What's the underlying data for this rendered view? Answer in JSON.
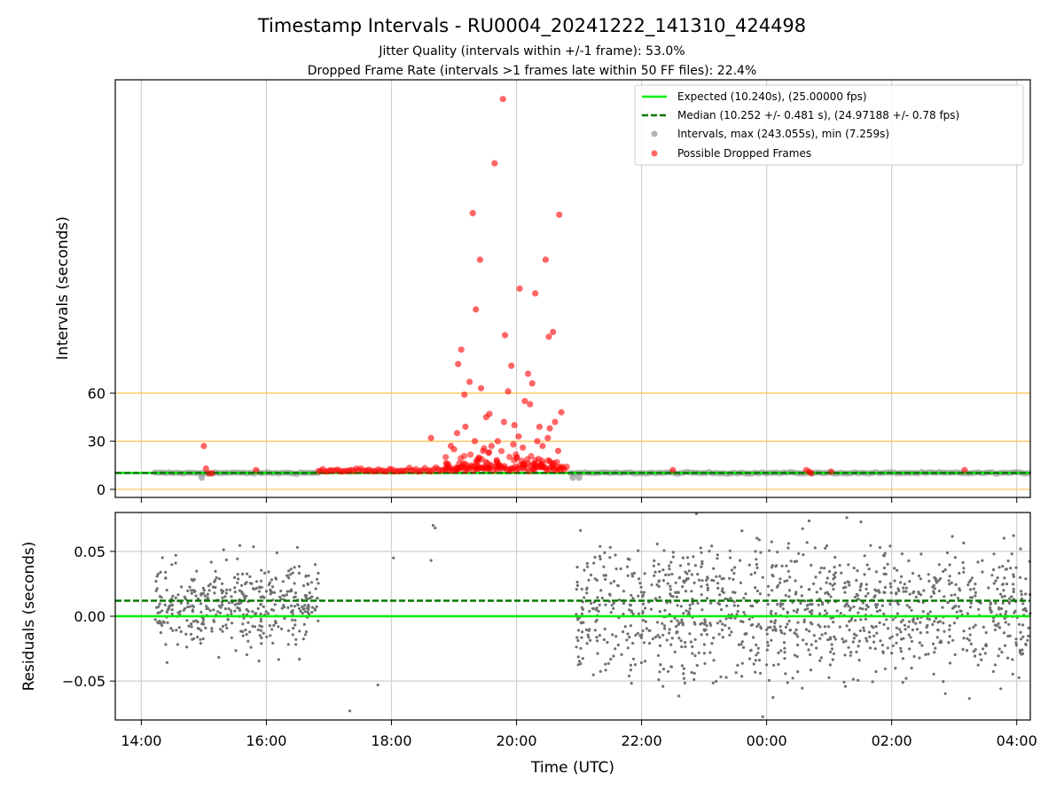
{
  "figure": {
    "title": "Timestamp Intervals - RU0004_20241222_141310_424498",
    "subtitle_1": "Jitter Quality (intervals within +/-1 frame): 53.0%",
    "subtitle_2": "Dropped Frame Rate (intervals >1 frames late within 50 FF files): 22.4%"
  },
  "chart_data": [
    {
      "type": "scatter",
      "panel": "intervals",
      "ylabel": "Intervals (seconds)",
      "ylim": [
        -5,
        255
      ],
      "yticks": [
        0,
        30,
        60
      ],
      "reference_lines": [
        0,
        30,
        60
      ],
      "grid": "vertical",
      "legend_position": "top-right",
      "legend": [
        "Expected (10.240s), (25.00000 fps)",
        "Median (10.252 +/- 0.481 s), (24.97188 +/- 0.78 fps)",
        "Intervals, max (243.055s), min (7.259s)",
        "Possible Dropped Frames"
      ],
      "expected_interval": 10.24,
      "median_interval": 10.252,
      "gray_segments": [
        [
          "14:13",
          "16:50"
        ],
        [
          "20:52",
          "04:13"
        ]
      ],
      "dropped_points": [
        {
          "time": "19:47",
          "value": 243
        },
        {
          "time": "19:39",
          "value": 203
        },
        {
          "time": "19:18",
          "value": 172
        },
        {
          "time": "20:41",
          "value": 171
        },
        {
          "time": "19:25",
          "value": 143
        },
        {
          "time": "20:28",
          "value": 143
        },
        {
          "time": "20:03",
          "value": 125
        },
        {
          "time": "20:18",
          "value": 122
        },
        {
          "time": "19:21",
          "value": 112
        },
        {
          "time": "20:35",
          "value": 98
        },
        {
          "time": "20:31",
          "value": 95
        },
        {
          "time": "19:49",
          "value": 96
        },
        {
          "time": "19:07",
          "value": 87
        },
        {
          "time": "19:04",
          "value": 78
        },
        {
          "time": "19:55",
          "value": 77
        },
        {
          "time": "20:11",
          "value": 72
        },
        {
          "time": "19:15",
          "value": 67
        },
        {
          "time": "20:15",
          "value": 66
        },
        {
          "time": "19:26",
          "value": 63
        },
        {
          "time": "19:10",
          "value": 59
        },
        {
          "time": "19:52",
          "value": 61
        },
        {
          "time": "20:08",
          "value": 55
        },
        {
          "time": "20:13",
          "value": 53
        },
        {
          "time": "19:34",
          "value": 47
        },
        {
          "time": "19:31",
          "value": 45
        },
        {
          "time": "19:48",
          "value": 42
        },
        {
          "time": "19:58",
          "value": 40
        },
        {
          "time": "20:22",
          "value": 39
        },
        {
          "time": "20:43",
          "value": 48
        },
        {
          "time": "20:37",
          "value": 42
        },
        {
          "time": "20:32",
          "value": 38
        },
        {
          "time": "19:03",
          "value": 35
        },
        {
          "time": "19:11",
          "value": 39
        },
        {
          "time": "19:20",
          "value": 30
        },
        {
          "time": "19:42",
          "value": 30
        },
        {
          "time": "20:02",
          "value": 33
        },
        {
          "time": "20:20",
          "value": 30
        },
        {
          "time": "20:30",
          "value": 32
        },
        {
          "time": "18:38",
          "value": 32
        },
        {
          "time": "18:57",
          "value": 27
        },
        {
          "time": "19:00",
          "value": 25
        },
        {
          "time": "19:28",
          "value": 24
        },
        {
          "time": "19:36",
          "value": 27
        },
        {
          "time": "19:57",
          "value": 28
        },
        {
          "time": "20:06",
          "value": 26
        },
        {
          "time": "20:25",
          "value": 27
        },
        {
          "time": "20:40",
          "value": 24
        },
        {
          "time": "15:00",
          "value": 27
        },
        {
          "time": "15:02",
          "value": 13
        },
        {
          "time": "15:05",
          "value": 10
        },
        {
          "time": "15:08",
          "value": 10
        },
        {
          "time": "15:50",
          "value": 12
        },
        {
          "time": "22:30",
          "value": 12
        },
        {
          "time": "00:38",
          "value": 12
        },
        {
          "time": "00:41",
          "value": 11
        },
        {
          "time": "00:43",
          "value": 10
        },
        {
          "time": "01:02",
          "value": 11
        },
        {
          "time": "03:10",
          "value": 12
        }
      ]
    },
    {
      "type": "scatter",
      "panel": "residuals",
      "ylabel": "Residuals (seconds)",
      "xlabel": "Time (UTC)",
      "ylim": [
        -0.08,
        0.08
      ],
      "yticks": [
        -0.05,
        0.0,
        0.05
      ],
      "ytick_labels": [
        "−0.05",
        "0.00",
        "0.05"
      ],
      "xticks": [
        "14:00",
        "16:00",
        "18:00",
        "20:00",
        "22:00",
        "00:00",
        "02:00",
        "04:00"
      ],
      "xlim": [
        "13:35",
        "04:13"
      ],
      "grid": "both",
      "expected_residual": 0.0,
      "median_residual": 0.012,
      "clusters": [
        {
          "start": "14:13",
          "end": "16:50",
          "center": 0.01,
          "spread": 0.03
        },
        {
          "start": "20:57",
          "end": "04:13",
          "center": 0.005,
          "spread": 0.045
        }
      ],
      "outliers": [
        {
          "time": "18:40",
          "value": 0.07
        },
        {
          "time": "18:42",
          "value": 0.068
        },
        {
          "time": "18:02",
          "value": 0.045
        },
        {
          "time": "18:38",
          "value": 0.043
        },
        {
          "time": "17:47",
          "value": -0.053
        },
        {
          "time": "17:20",
          "value": -0.073
        }
      ]
    }
  ],
  "colors": {
    "expected": "#00ee00",
    "median": "#007700",
    "intervals": "#808080",
    "dropped": "#ff0000",
    "reference": "#ffc04d",
    "grid": "#d0d0d0"
  }
}
